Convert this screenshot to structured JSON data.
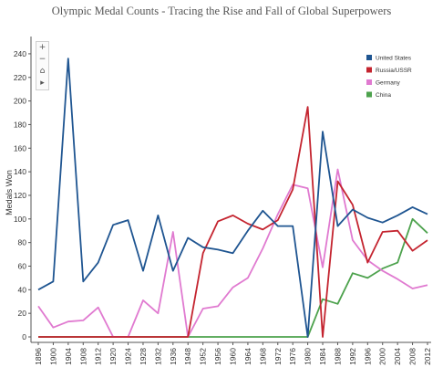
{
  "chart_data": {
    "type": "line",
    "title": "Olympic Medal Counts - Tracing the Rise and Fall of Global Superpowers",
    "xlabel": "",
    "ylabel": "Medals Won",
    "ylim": [
      0,
      250
    ],
    "yticks": [
      0,
      20,
      40,
      60,
      80,
      100,
      120,
      140,
      160,
      180,
      200,
      220,
      240
    ],
    "grid": false,
    "legend_position": "top-right",
    "x": [
      "1896",
      "1900",
      "1904",
      "1908",
      "1912",
      "1920",
      "1924",
      "1928",
      "1932",
      "1936",
      "1948",
      "1952",
      "1956",
      "1960",
      "1964",
      "1968",
      "1972",
      "1976",
      "1980",
      "1984",
      "1988",
      "1992",
      "1996",
      "2000",
      "2004",
      "2008",
      "2012"
    ],
    "series": [
      {
        "name": "United States",
        "color": "#1f5591",
        "values": [
          40,
          47,
          236,
          47,
          63,
          95,
          99,
          56,
          103,
          56,
          84,
          76,
          74,
          71,
          90,
          107,
          94,
          94,
          0,
          174,
          94,
          108,
          101,
          97,
          103,
          110,
          104
        ]
      },
      {
        "name": "Russia/USSR",
        "color": "#c4242f",
        "values": [
          0,
          0,
          0,
          0,
          0,
          0,
          0,
          0,
          0,
          0,
          0,
          71,
          98,
          103,
          96,
          91,
          99,
          125,
          195,
          0,
          132,
          112,
          63,
          89,
          90,
          73,
          82
        ]
      },
      {
        "name": "Germany",
        "color": "#e07ad0",
        "values": [
          26,
          8,
          13,
          14,
          25,
          0,
          0,
          31,
          20,
          89,
          0,
          24,
          26,
          42,
          50,
          75,
          104,
          129,
          126,
          59,
          142,
          82,
          65,
          56,
          49,
          41,
          44
        ]
      },
      {
        "name": "China",
        "color": "#4da24d",
        "values": [
          0,
          0,
          0,
          0,
          0,
          0,
          0,
          0,
          0,
          0,
          0,
          0,
          0,
          0,
          0,
          0,
          0,
          0,
          0,
          32,
          28,
          54,
          50,
          58,
          63,
          100,
          88
        ]
      }
    ]
  },
  "toolbar": {
    "zoom_in_icon": "plus-icon",
    "zoom_out_icon": "minus-icon",
    "home_icon": "home-icon",
    "pan_icon": "play-icon",
    "zoom_in_glyph": "+",
    "zoom_out_glyph": "−",
    "home_glyph": "⌂",
    "pan_glyph": "▸"
  }
}
